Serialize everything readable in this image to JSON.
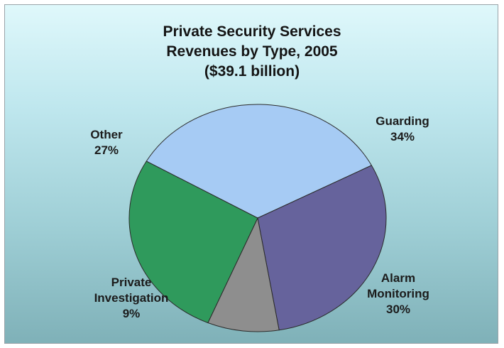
{
  "chart_data": {
    "type": "pie",
    "title": "Private Security Services",
    "subtitle_lines": [
      "Revenues by Type, 2005",
      "($39.1 billion)"
    ],
    "unit": "%",
    "slices": [
      {
        "name": "Guarding",
        "label_lines": [
          "Guarding"
        ],
        "value": 34,
        "color": "#a6cbf4"
      },
      {
        "name": "Alarm Monitoring",
        "label_lines": [
          "Alarm",
          "Monitoring"
        ],
        "value": 30,
        "color": "#66639c"
      },
      {
        "name": "Private Investigation",
        "label_lines": [
          "Private",
          "Investigation"
        ],
        "value": 9,
        "color": "#8e8e8e"
      },
      {
        "name": "Other",
        "label_lines": [
          "Other"
        ],
        "value": 27,
        "color": "#2f9a5c"
      }
    ],
    "legend": "none"
  }
}
